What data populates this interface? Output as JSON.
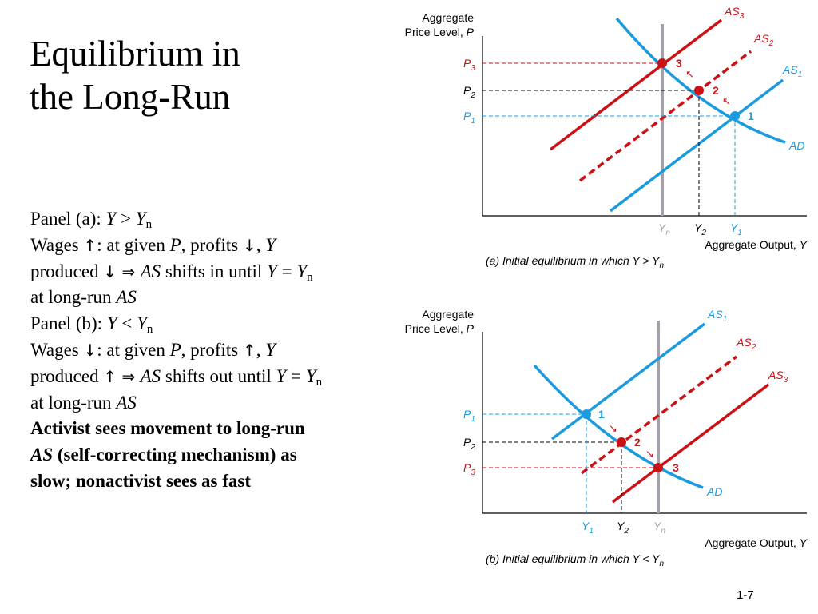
{
  "title_line1": "Equilibrium in",
  "title_line2": "the Long-Run",
  "colors": {
    "blue": "#1a9be0",
    "red": "#cc1114",
    "gray": "#a6a1a8",
    "black": "#000000"
  },
  "body": {
    "pa_label": "Panel (a): ",
    "pa_y": "Y",
    "pa_gt": " > ",
    "pa_yn": "Y",
    "pa_sub": "n",
    "wa1": "Wages ",
    "wa_up": "↑",
    "wa2": ": at given ",
    "wa_p": "P",
    "wa3": ", profits ",
    "wa_down": "↓",
    "wa4": ", ",
    "wa_y": "Y",
    "pra1": "produced ",
    "pra_down": "↓",
    "pra_imp": " ⇒ ",
    "pra_as": "AS",
    "pra2": " shifts in until ",
    "pra_y": "Y",
    "pra_eq": " = ",
    "pra_yn": "Y",
    "pra_sub": "n",
    "lra1": "at long-run ",
    "lra_as": "AS",
    "pb_label": "Panel (b): ",
    "pb_y": "Y",
    "pb_lt": " < ",
    "pb_yn": "Y",
    "pb_sub": "n",
    "wb1": "Wages ",
    "wb_down": "↓",
    "wb2": ": at given ",
    "wb_p": "P",
    "wb3": ", profits ",
    "wb_up": "↑",
    "wb4": ", ",
    "wb_y": "Y",
    "prb1": "produced ",
    "prb_up": "↑",
    "prb_imp": " ⇒ ",
    "prb_as": "AS",
    "prb2": " shifts out until ",
    "prb_y": "Y",
    "prb_eq": " = ",
    "prb_yn": "Y",
    "prb_sub": "n",
    "lrb1": "at long-run ",
    "lrb_as": "AS",
    "act1": "Activist sees movement to long-run",
    "act2_as": "AS",
    "act2": " (self-correcting mechanism) as",
    "act3": "slow; nonactivist sees as fast"
  },
  "panel_a": {
    "ylabel_line1": "Aggregate",
    "ylabel_line2": "Price Level, ",
    "ylabel_p": "P",
    "xlabel": "Aggregate Output, ",
    "xlabel_y": "Y",
    "caption": "(a) Initial equilibrium in which  Y > Y",
    "caption_sub": "n",
    "curves": {
      "as3": "AS",
      "as3_sub": "3",
      "as2": "AS",
      "as2_sub": "2",
      "as1": "AS",
      "as1_sub": "1",
      "ad": "AD"
    },
    "prices": {
      "p3": "P",
      "p3_sub": "3",
      "p2": "P",
      "p2_sub": "2",
      "p1": "P",
      "p1_sub": "1"
    },
    "outputs": {
      "yn": "Y",
      "yn_sub": "n",
      "y2": "Y",
      "y2_sub": "2",
      "y1": "Y",
      "y1_sub": "1"
    },
    "points": {
      "pt3": "3",
      "pt2": "2",
      "pt1": "1"
    }
  },
  "panel_b": {
    "ylabel_line1": "Aggregate",
    "ylabel_line2": "Price Level, ",
    "ylabel_p": "P",
    "xlabel": "Aggregate Output, ",
    "xlabel_y": "Y",
    "caption": "(b) Initial equilibrium in which  Y < Y",
    "caption_sub": "n",
    "curves": {
      "as1": "AS",
      "as1_sub": "1",
      "as2": "AS",
      "as2_sub": "2",
      "as3": "AS",
      "as3_sub": "3",
      "ad": "AD"
    },
    "prices": {
      "p1": "P",
      "p1_sub": "1",
      "p2": "P",
      "p2_sub": "2",
      "p3": "P",
      "p3_sub": "3"
    },
    "outputs": {
      "y1": "Y",
      "y1_sub": "1",
      "y2": "Y",
      "y2_sub": "2",
      "yn": "Y",
      "yn_sub": "n"
    },
    "points": {
      "pt1": "1",
      "pt2": "2",
      "pt3": "3"
    }
  },
  "slide_number": "1-7"
}
